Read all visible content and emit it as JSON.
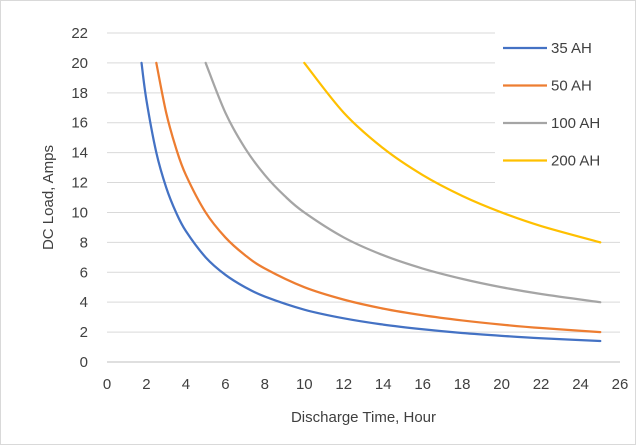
{
  "chart_data": {
    "type": "line",
    "xlabel": "Discharge Time, Hour",
    "ylabel": "DC Load, Amps",
    "xlim": [
      0,
      26
    ],
    "ylim": [
      0,
      22
    ],
    "x_ticks": [
      0,
      2,
      4,
      6,
      8,
      10,
      12,
      14,
      16,
      18,
      20,
      22,
      24,
      26
    ],
    "y_ticks": [
      0,
      2,
      4,
      6,
      8,
      10,
      12,
      14,
      16,
      18,
      20,
      22
    ],
    "grid": "horizontal",
    "legend_position": "right",
    "series": [
      {
        "name": "35 AH",
        "color": "#4472C4",
        "points": [
          [
            1.75,
            20
          ],
          [
            2,
            17.5
          ],
          [
            2.5,
            14
          ],
          [
            3,
            11.67
          ],
          [
            3.5,
            10
          ],
          [
            4,
            8.75
          ],
          [
            5,
            7
          ],
          [
            6,
            5.83
          ],
          [
            7,
            5
          ],
          [
            8,
            4.375
          ],
          [
            10,
            3.5
          ],
          [
            12,
            2.92
          ],
          [
            14,
            2.5
          ],
          [
            16,
            2.19
          ],
          [
            18,
            1.94
          ],
          [
            20,
            1.75
          ],
          [
            22,
            1.59
          ],
          [
            25,
            1.4
          ]
        ]
      },
      {
        "name": "50 AH",
        "color": "#ED7D31",
        "points": [
          [
            2.5,
            20
          ],
          [
            3,
            16.67
          ],
          [
            3.5,
            14.29
          ],
          [
            4,
            12.5
          ],
          [
            5,
            10
          ],
          [
            6,
            8.33
          ],
          [
            7,
            7.14
          ],
          [
            8,
            6.25
          ],
          [
            10,
            5
          ],
          [
            12,
            4.17
          ],
          [
            14,
            3.57
          ],
          [
            16,
            3.125
          ],
          [
            18,
            2.78
          ],
          [
            20,
            2.5
          ],
          [
            22,
            2.27
          ],
          [
            25,
            2
          ]
        ]
      },
      {
        "name": "100 AH",
        "color": "#A5A5A5",
        "points": [
          [
            5,
            20
          ],
          [
            6,
            16.67
          ],
          [
            7,
            14.29
          ],
          [
            8,
            12.5
          ],
          [
            9,
            11.11
          ],
          [
            10,
            10
          ],
          [
            12,
            8.33
          ],
          [
            14,
            7.14
          ],
          [
            16,
            6.25
          ],
          [
            18,
            5.56
          ],
          [
            20,
            5
          ],
          [
            22,
            4.55
          ],
          [
            25,
            4
          ]
        ]
      },
      {
        "name": "200 AH",
        "color": "#FFC000",
        "points": [
          [
            10,
            20
          ],
          [
            12,
            16.67
          ],
          [
            14,
            14.29
          ],
          [
            16,
            12.5
          ],
          [
            18,
            11.11
          ],
          [
            20,
            10
          ],
          [
            22,
            9.09
          ],
          [
            25,
            8
          ]
        ]
      }
    ]
  }
}
